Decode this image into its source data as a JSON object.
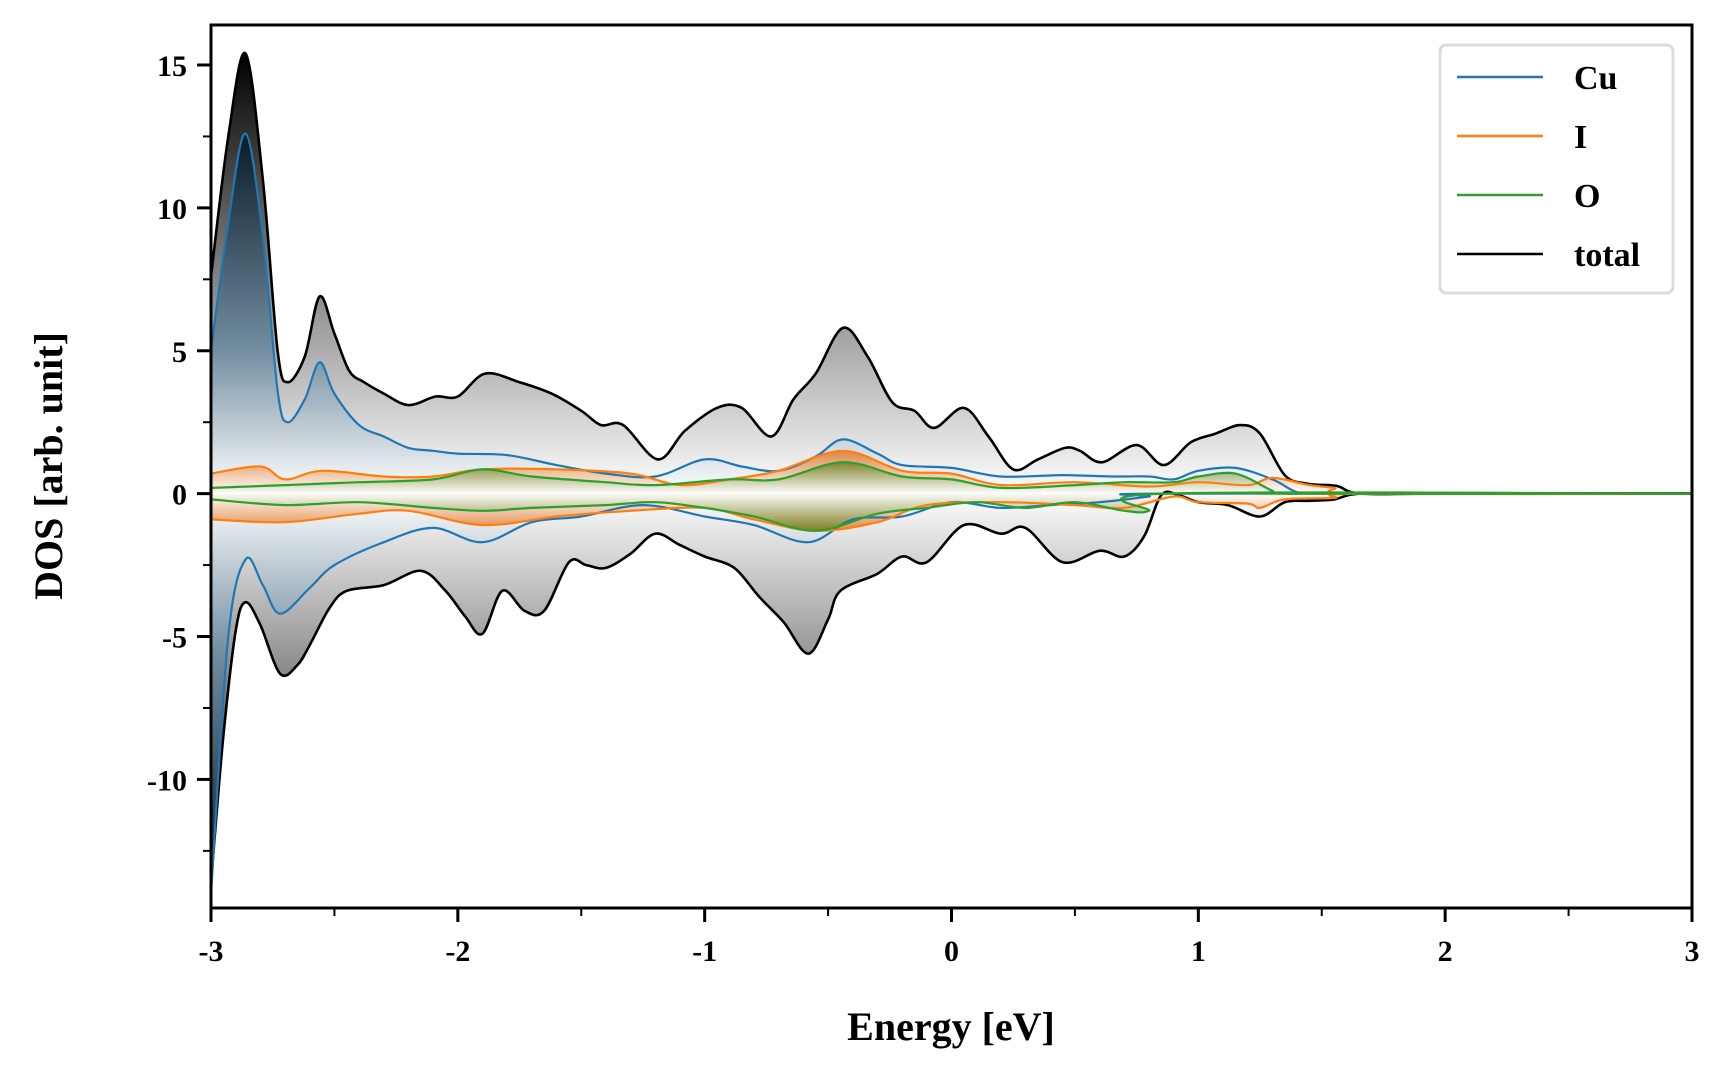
{
  "chart_data": {
    "type": "area",
    "title": "",
    "xlabel": "Energy [eV]",
    "ylabel": "DOS [arb. unit]",
    "xlim": [
      -3,
      3
    ],
    "ylim": [
      -14.5,
      16.4
    ],
    "xticks": [
      -3,
      -2,
      -1,
      0,
      1,
      2,
      3
    ],
    "xtick_labels": [
      "-3",
      "-2",
      "-1",
      "0",
      "1",
      "2",
      "3"
    ],
    "xminor": [
      -2.5,
      -1.5,
      -0.5,
      0.5,
      1.5,
      2.5
    ],
    "yticks": [
      15,
      10,
      5,
      0,
      -5,
      -10
    ],
    "ytick_labels": [
      "15",
      "10",
      "5",
      "0",
      "-5",
      "-10"
    ],
    "yminor": [
      12.5,
      7.5,
      2.5,
      -2.5,
      -7.5,
      -12.5
    ],
    "grid": false,
    "legend_position": "top-right",
    "series": [
      {
        "name": "total",
        "color": "#000000",
        "fill": "gray",
        "spin_up": [
          [
            -3.0,
            7.6
          ],
          [
            -2.93,
            12.5
          ],
          [
            -2.86,
            15.4
          ],
          [
            -2.79,
            11.0
          ],
          [
            -2.73,
            5.0
          ],
          [
            -2.69,
            3.9
          ],
          [
            -2.62,
            4.8
          ],
          [
            -2.56,
            6.9
          ],
          [
            -2.5,
            5.6
          ],
          [
            -2.44,
            4.3
          ],
          [
            -2.38,
            3.9
          ],
          [
            -2.3,
            3.5
          ],
          [
            -2.2,
            3.1
          ],
          [
            -2.09,
            3.4
          ],
          [
            -2.0,
            3.4
          ],
          [
            -1.89,
            4.2
          ],
          [
            -1.75,
            3.9
          ],
          [
            -1.62,
            3.5
          ],
          [
            -1.5,
            2.9
          ],
          [
            -1.42,
            2.4
          ],
          [
            -1.33,
            2.4
          ],
          [
            -1.19,
            1.2
          ],
          [
            -1.08,
            2.2
          ],
          [
            -0.95,
            3.0
          ],
          [
            -0.85,
            3.0
          ],
          [
            -0.73,
            2.0
          ],
          [
            -0.64,
            3.3
          ],
          [
            -0.55,
            4.2
          ],
          [
            -0.44,
            5.8
          ],
          [
            -0.34,
            4.8
          ],
          [
            -0.24,
            3.2
          ],
          [
            -0.15,
            2.9
          ],
          [
            -0.07,
            2.3
          ],
          [
            0.05,
            3.0
          ],
          [
            0.15,
            2.0
          ],
          [
            0.25,
            0.85
          ],
          [
            0.35,
            1.2
          ],
          [
            0.46,
            1.6
          ],
          [
            0.52,
            1.5
          ],
          [
            0.61,
            1.1
          ],
          [
            0.75,
            1.7
          ],
          [
            0.86,
            1.0
          ],
          [
            0.97,
            1.8
          ],
          [
            1.07,
            2.1
          ],
          [
            1.17,
            2.4
          ],
          [
            1.25,
            2.1
          ],
          [
            1.35,
            0.65
          ],
          [
            1.44,
            0.35
          ],
          [
            1.56,
            0.27
          ],
          [
            1.66,
            0.0
          ],
          [
            2.0,
            0.0
          ],
          [
            3.0,
            0.0
          ]
        ],
        "spin_down": [
          [
            -3.0,
            -13.6
          ],
          [
            -2.95,
            -8.5
          ],
          [
            -2.9,
            -4.8
          ],
          [
            -2.86,
            -3.8
          ],
          [
            -2.8,
            -4.6
          ],
          [
            -2.72,
            -6.3
          ],
          [
            -2.65,
            -6.0
          ],
          [
            -2.6,
            -5.3
          ],
          [
            -2.52,
            -4.0
          ],
          [
            -2.45,
            -3.4
          ],
          [
            -2.3,
            -3.2
          ],
          [
            -2.15,
            -2.7
          ],
          [
            -2.05,
            -3.4
          ],
          [
            -1.97,
            -4.3
          ],
          [
            -1.9,
            -4.9
          ],
          [
            -1.82,
            -3.4
          ],
          [
            -1.73,
            -4.1
          ],
          [
            -1.65,
            -4.1
          ],
          [
            -1.55,
            -2.4
          ],
          [
            -1.48,
            -2.5
          ],
          [
            -1.4,
            -2.6
          ],
          [
            -1.3,
            -2.1
          ],
          [
            -1.2,
            -1.4
          ],
          [
            -1.1,
            -1.8
          ],
          [
            -1.0,
            -2.2
          ],
          [
            -0.88,
            -2.6
          ],
          [
            -0.78,
            -3.6
          ],
          [
            -0.68,
            -4.5
          ],
          [
            -0.58,
            -5.6
          ],
          [
            -0.5,
            -4.4
          ],
          [
            -0.45,
            -3.4
          ],
          [
            -0.3,
            -2.8
          ],
          [
            -0.2,
            -2.2
          ],
          [
            -0.1,
            -2.4
          ],
          [
            0.05,
            -1.1
          ],
          [
            0.2,
            -1.4
          ],
          [
            0.3,
            -1.2
          ],
          [
            0.45,
            -2.4
          ],
          [
            0.6,
            -2.0
          ],
          [
            0.7,
            -2.2
          ],
          [
            0.78,
            -1.5
          ],
          [
            0.85,
            -0.05
          ],
          [
            0.92,
            -0.05
          ],
          [
            1.0,
            -0.3
          ],
          [
            1.12,
            -0.4
          ],
          [
            1.25,
            -0.8
          ],
          [
            1.35,
            -0.3
          ],
          [
            1.45,
            -0.25
          ],
          [
            1.55,
            -0.2
          ],
          [
            1.66,
            0.0
          ],
          [
            2.0,
            0.0
          ],
          [
            3.0,
            0.0
          ]
        ]
      },
      {
        "name": "Cu",
        "color": "#1f77b4",
        "fill": "blue",
        "spin_up": [
          [
            -3.0,
            5.0
          ],
          [
            -2.93,
            9.5
          ],
          [
            -2.86,
            12.6
          ],
          [
            -2.79,
            9.0
          ],
          [
            -2.73,
            3.6
          ],
          [
            -2.69,
            2.5
          ],
          [
            -2.62,
            3.3
          ],
          [
            -2.56,
            4.6
          ],
          [
            -2.5,
            3.5
          ],
          [
            -2.4,
            2.4
          ],
          [
            -2.3,
            2.0
          ],
          [
            -2.2,
            1.6
          ],
          [
            -2.1,
            1.5
          ],
          [
            -2.0,
            1.4
          ],
          [
            -1.8,
            1.35
          ],
          [
            -1.6,
            1.0
          ],
          [
            -1.4,
            0.7
          ],
          [
            -1.2,
            0.6
          ],
          [
            -1.0,
            1.2
          ],
          [
            -0.85,
            0.95
          ],
          [
            -0.7,
            0.8
          ],
          [
            -0.55,
            1.3
          ],
          [
            -0.44,
            1.9
          ],
          [
            -0.3,
            1.4
          ],
          [
            -0.2,
            1.0
          ],
          [
            0.0,
            0.9
          ],
          [
            0.2,
            0.6
          ],
          [
            0.45,
            0.65
          ],
          [
            0.65,
            0.6
          ],
          [
            0.8,
            0.6
          ],
          [
            0.9,
            0.5
          ],
          [
            1.0,
            0.8
          ],
          [
            1.15,
            0.9
          ],
          [
            1.3,
            0.5
          ],
          [
            1.4,
            0.05
          ],
          [
            1.5,
            0.0
          ],
          [
            3.0,
            0.0
          ]
        ],
        "spin_down": [
          [
            -3.0,
            -14.0
          ],
          [
            -2.93,
            -5.0
          ],
          [
            -2.86,
            -2.3
          ],
          [
            -2.79,
            -3.2
          ],
          [
            -2.72,
            -4.2
          ],
          [
            -2.6,
            -3.3
          ],
          [
            -2.5,
            -2.5
          ],
          [
            -2.3,
            -1.7
          ],
          [
            -2.1,
            -1.2
          ],
          [
            -1.9,
            -1.7
          ],
          [
            -1.7,
            -1.0
          ],
          [
            -1.5,
            -0.8
          ],
          [
            -1.25,
            -0.4
          ],
          [
            -1.0,
            -0.8
          ],
          [
            -0.8,
            -1.1
          ],
          [
            -0.58,
            -1.7
          ],
          [
            -0.4,
            -0.9
          ],
          [
            -0.2,
            -0.8
          ],
          [
            0.0,
            -0.3
          ],
          [
            0.2,
            -0.5
          ],
          [
            0.4,
            -0.4
          ],
          [
            0.6,
            -0.3
          ],
          [
            0.8,
            -0.1
          ],
          [
            0.85,
            0.0
          ],
          [
            3.0,
            0.0
          ]
        ]
      },
      {
        "name": "I",
        "color": "#ff7f0e",
        "fill": "orange",
        "spin_up": [
          [
            -3.0,
            0.7
          ],
          [
            -2.8,
            0.95
          ],
          [
            -2.7,
            0.5
          ],
          [
            -2.55,
            0.8
          ],
          [
            -2.3,
            0.6
          ],
          [
            -2.1,
            0.6
          ],
          [
            -1.9,
            0.85
          ],
          [
            -1.6,
            0.85
          ],
          [
            -1.3,
            0.7
          ],
          [
            -1.1,
            0.3
          ],
          [
            -0.9,
            0.5
          ],
          [
            -0.7,
            0.8
          ],
          [
            -0.44,
            1.5
          ],
          [
            -0.2,
            0.8
          ],
          [
            0.0,
            0.7
          ],
          [
            0.2,
            0.3
          ],
          [
            0.5,
            0.4
          ],
          [
            0.8,
            0.25
          ],
          [
            1.0,
            0.4
          ],
          [
            1.2,
            0.3
          ],
          [
            1.3,
            0.55
          ],
          [
            1.45,
            0.3
          ],
          [
            1.55,
            0.2
          ],
          [
            1.66,
            0.0
          ],
          [
            3.0,
            0.0
          ]
        ],
        "spin_down": [
          [
            -3.0,
            -0.9
          ],
          [
            -2.7,
            -1.0
          ],
          [
            -2.4,
            -0.7
          ],
          [
            -2.2,
            -0.6
          ],
          [
            -1.9,
            -1.1
          ],
          [
            -1.6,
            -0.8
          ],
          [
            -1.3,
            -0.6
          ],
          [
            -1.0,
            -0.5
          ],
          [
            -0.8,
            -0.9
          ],
          [
            -0.55,
            -1.3
          ],
          [
            -0.3,
            -1.0
          ],
          [
            -0.1,
            -0.4
          ],
          [
            0.2,
            -0.3
          ],
          [
            0.5,
            -0.4
          ],
          [
            0.7,
            -0.5
          ],
          [
            0.9,
            -0.1
          ],
          [
            1.0,
            -0.3
          ],
          [
            1.2,
            -0.35
          ],
          [
            1.25,
            -0.5
          ],
          [
            1.35,
            -0.2
          ],
          [
            1.55,
            -0.15
          ],
          [
            1.66,
            0.0
          ],
          [
            3.0,
            0.0
          ]
        ]
      },
      {
        "name": "O",
        "color": "#2ca02c",
        "fill": "olive",
        "spin_up": [
          [
            -3.0,
            0.2
          ],
          [
            -2.7,
            0.3
          ],
          [
            -2.4,
            0.4
          ],
          [
            -2.1,
            0.5
          ],
          [
            -1.9,
            0.85
          ],
          [
            -1.7,
            0.6
          ],
          [
            -1.4,
            0.4
          ],
          [
            -1.2,
            0.3
          ],
          [
            -0.9,
            0.5
          ],
          [
            -0.7,
            0.5
          ],
          [
            -0.44,
            1.1
          ],
          [
            -0.2,
            0.6
          ],
          [
            0.0,
            0.5
          ],
          [
            0.2,
            0.2
          ],
          [
            0.5,
            0.3
          ],
          [
            0.7,
            0.4
          ],
          [
            0.9,
            0.4
          ],
          [
            1.0,
            0.6
          ],
          [
            1.15,
            0.7
          ],
          [
            1.3,
            0.1
          ],
          [
            1.35,
            0.0
          ],
          [
            3.0,
            0.0
          ]
        ],
        "spin_down": [
          [
            -3.0,
            -0.2
          ],
          [
            -2.7,
            -0.4
          ],
          [
            -2.4,
            -0.3
          ],
          [
            -2.1,
            -0.5
          ],
          [
            -1.9,
            -0.6
          ],
          [
            -1.7,
            -0.5
          ],
          [
            -1.4,
            -0.4
          ],
          [
            -1.2,
            -0.3
          ],
          [
            -1.0,
            -0.5
          ],
          [
            -0.8,
            -0.8
          ],
          [
            -0.55,
            -1.3
          ],
          [
            -0.3,
            -0.7
          ],
          [
            -0.1,
            -0.5
          ],
          [
            0.1,
            -0.3
          ],
          [
            0.3,
            -0.5
          ],
          [
            0.5,
            -0.3
          ],
          [
            0.7,
            -0.6
          ],
          [
            0.8,
            -0.6
          ],
          [
            0.86,
            0.0
          ],
          [
            3.0,
            0.0
          ]
        ]
      }
    ],
    "legend": [
      {
        "label": "Cu",
        "color": "#1f77b4"
      },
      {
        "label": "I",
        "color": "#ff7f0e"
      },
      {
        "label": "O",
        "color": "#2ca02c"
      },
      {
        "label": "total",
        "color": "#000000"
      }
    ]
  }
}
